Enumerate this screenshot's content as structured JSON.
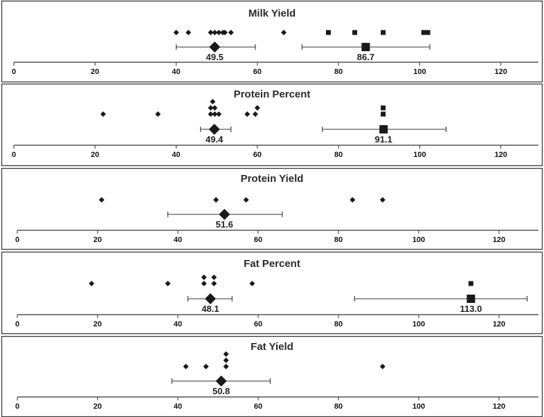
{
  "chart_data": [
    {
      "type": "scatter",
      "title": "Milk Yield",
      "xlim": [
        0,
        125
      ],
      "ticks": [
        0,
        20,
        40,
        60,
        80,
        100,
        120
      ],
      "tick_labels": [
        "0",
        "20",
        "40",
        "60",
        "80",
        "100",
        "120"
      ],
      "series": [
        {
          "marker": "diamond",
          "points": [
            [
              40,
              0
            ],
            [
              43,
              0
            ],
            [
              48.5,
              0
            ],
            [
              49.5,
              0
            ],
            [
              50.5,
              0
            ],
            [
              51.5,
              0
            ],
            [
              52,
              0
            ],
            [
              53.5,
              0
            ],
            [
              66.5,
              0
            ]
          ],
          "mean": 49.5,
          "mean_label": "49.5",
          "ci": [
            40,
            59.5
          ]
        },
        {
          "marker": "square",
          "points": [
            [
              77.5,
              0
            ],
            [
              84,
              0
            ],
            [
              91,
              0
            ],
            [
              101,
              0
            ],
            [
              102,
              0
            ]
          ],
          "mean": 86.7,
          "mean_label": "86.7",
          "ci": [
            71,
            102.5
          ]
        }
      ]
    },
    {
      "type": "scatter",
      "title": "Protein Percent",
      "xlim": [
        0,
        125
      ],
      "ticks": [
        0,
        20,
        40,
        60,
        80,
        100,
        120
      ],
      "tick_labels": [
        "0",
        "20",
        "40",
        "60",
        "80",
        "100",
        "120"
      ],
      "series": [
        {
          "marker": "diamond",
          "points": [
            [
              22,
              0
            ],
            [
              35.5,
              0
            ],
            [
              48.5,
              0
            ],
            [
              49.5,
              0
            ],
            [
              50.5,
              0
            ],
            [
              48.5,
              1
            ],
            [
              49.5,
              1
            ],
            [
              49,
              2
            ],
            [
              57.5,
              0
            ],
            [
              59.5,
              0
            ],
            [
              60,
              1
            ]
          ],
          "mean": 49.4,
          "mean_label": "49.4",
          "ci": [
            46,
            53.5
          ]
        },
        {
          "marker": "square",
          "points": [
            [
              91,
              0
            ],
            [
              91,
              1
            ]
          ],
          "mean": 91.1,
          "mean_label": "91.1",
          "ci": [
            76,
            106.5
          ]
        }
      ]
    },
    {
      "type": "scatter",
      "title": "Protein Yield",
      "xlim": [
        0,
        125
      ],
      "ticks": [
        0,
        20,
        40,
        60,
        80,
        100,
        120
      ],
      "tick_labels": [
        "0",
        "20",
        "40",
        "60",
        "80",
        "100",
        "120"
      ],
      "series": [
        {
          "marker": "diamond",
          "points": [
            [
              21,
              0
            ],
            [
              49.5,
              0
            ],
            [
              57,
              0
            ],
            [
              83.5,
              0
            ],
            [
              91,
              0
            ]
          ],
          "mean": 51.6,
          "mean_label": "51.6",
          "ci": [
            37.5,
            66
          ]
        }
      ]
    },
    {
      "type": "scatter",
      "title": "Fat Percent",
      "xlim": [
        0,
        125
      ],
      "ticks": [
        0,
        20,
        40,
        60,
        80,
        100,
        120
      ],
      "tick_labels": [
        "0",
        "20",
        "40",
        "60",
        "80",
        "100",
        "120"
      ],
      "series": [
        {
          "marker": "diamond",
          "points": [
            [
              18.5,
              0
            ],
            [
              37.5,
              0
            ],
            [
              46.5,
              0
            ],
            [
              49,
              0
            ],
            [
              58.5,
              0
            ],
            [
              46.5,
              1
            ],
            [
              49,
              1
            ]
          ],
          "mean": 48.1,
          "mean_label": "48.1",
          "ci": [
            42.5,
            53.5
          ]
        },
        {
          "marker": "square",
          "points": [
            [
              113,
              0
            ]
          ],
          "mean": 113.0,
          "mean_label": "113.0",
          "ci": [
            84,
            127
          ]
        }
      ]
    },
    {
      "type": "scatter",
      "title": "Fat Yield",
      "xlim": [
        0,
        125
      ],
      "ticks": [
        0,
        20,
        40,
        60,
        80,
        100,
        120
      ],
      "tick_labels": [
        "0",
        "20",
        "40",
        "60",
        "80",
        "100",
        "120"
      ],
      "series": [
        {
          "marker": "diamond",
          "points": [
            [
              42,
              0
            ],
            [
              47,
              0
            ],
            [
              52,
              0
            ],
            [
              52,
              1
            ],
            [
              52,
              2
            ],
            [
              91,
              0
            ]
          ],
          "mean": 50.8,
          "mean_label": "50.8",
          "ci": [
            38.5,
            63
          ]
        }
      ]
    }
  ]
}
